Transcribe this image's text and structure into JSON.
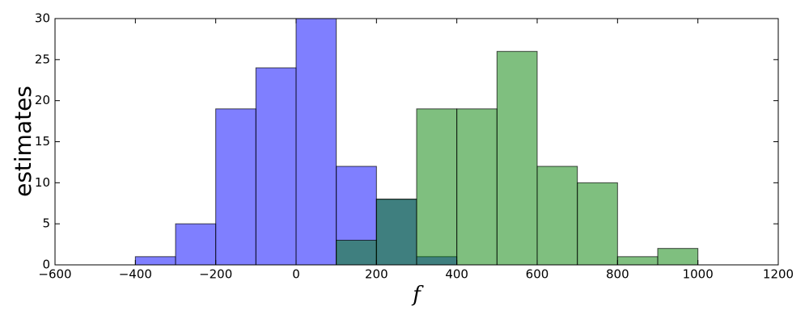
{
  "chart_data": {
    "type": "histogram",
    "xlabel": "f",
    "ylabel": "estimates",
    "series": [
      {
        "color": "#0000ff",
        "alpha": 0.5,
        "bins": [
          -400,
          -300,
          -200,
          -100,
          0,
          100,
          200,
          300,
          400
        ],
        "values": [
          1,
          5,
          19,
          24,
          30,
          12,
          8,
          1
        ]
      },
      {
        "color": "#008000",
        "alpha": 0.5,
        "bins": [
          100,
          200,
          300,
          400,
          500,
          600,
          700,
          800,
          900,
          1000
        ],
        "values": [
          3,
          8,
          19,
          19,
          26,
          12,
          10,
          1,
          2
        ]
      }
    ],
    "xlim": [
      -600,
      1200
    ],
    "xticks": [
      {
        "value": -600,
        "label": "−600"
      },
      {
        "value": -400,
        "label": "−400"
      },
      {
        "value": -200,
        "label": "−200"
      },
      0,
      200,
      400,
      600,
      800,
      1000,
      1200
    ],
    "ylim": [
      0,
      30
    ],
    "yticks": [
      0,
      5,
      10,
      15,
      20,
      25,
      30
    ],
    "grid": false
  }
}
